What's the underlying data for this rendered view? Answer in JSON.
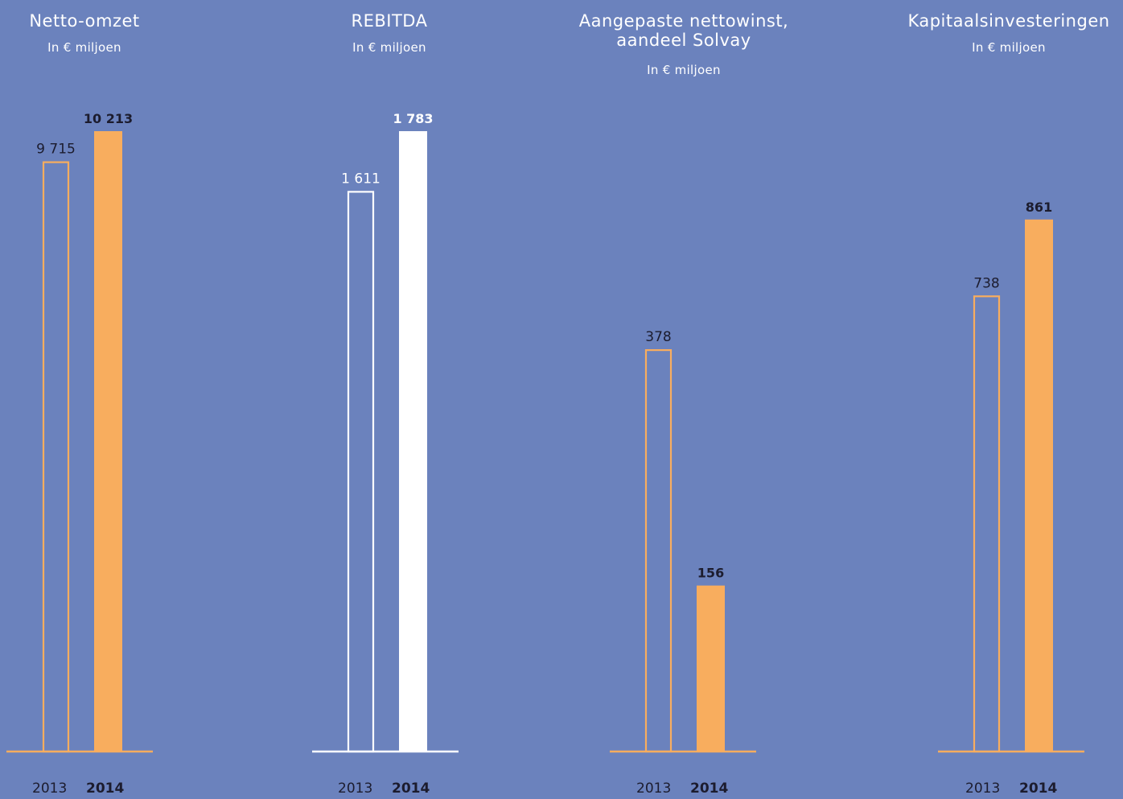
{
  "colors": {
    "background": "#6b82bd",
    "orange": "#f8ad5e",
    "white": "#ffffff",
    "label_dark": "#1c1c2e",
    "label_light": "#ffffff"
  },
  "chart_data": [
    {
      "type": "bar",
      "title_lines": [
        "Netto-omzet"
      ],
      "subtitle": "In € miljoen",
      "categories": [
        "2013",
        "2014"
      ],
      "values": [
        9715,
        10213
      ],
      "value_labels": [
        "9 715",
        "10 213"
      ],
      "ylim": [
        0,
        10213
      ],
      "color": "orange",
      "label_color": "label_dark"
    },
    {
      "type": "bar",
      "title_lines": [
        "REBITDA"
      ],
      "subtitle": "In € miljoen",
      "categories": [
        "2013",
        "2014"
      ],
      "values": [
        1611,
        1783
      ],
      "value_labels": [
        "1 611",
        "1 783"
      ],
      "ylim": [
        0,
        1783
      ],
      "color": "white",
      "label_color": "label_light"
    },
    {
      "type": "bar",
      "title_lines": [
        "Aangepaste nettowinst,",
        "aandeel Solvay"
      ],
      "subtitle": "In € miljoen",
      "categories": [
        "2013",
        "2014"
      ],
      "values": [
        378,
        156
      ],
      "value_labels": [
        "378",
        "156"
      ],
      "ylim": [
        0,
        583
      ],
      "color": "orange",
      "label_color": "label_dark"
    },
    {
      "type": "bar",
      "title_lines": [
        "Kapitaalsinvesteringen"
      ],
      "subtitle": "In € miljoen",
      "categories": [
        "2013",
        "2014"
      ],
      "values": [
        738,
        861
      ],
      "value_labels": [
        "738",
        "861"
      ],
      "ylim": [
        0,
        1004
      ],
      "color": "orange",
      "label_color": "label_dark"
    }
  ]
}
